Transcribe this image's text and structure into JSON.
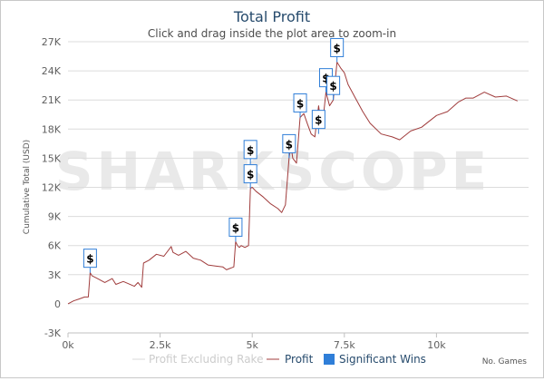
{
  "chart_data": {
    "type": "line",
    "title": "Total Profit",
    "subtitle": "Click and drag inside the plot area to zoom-in",
    "xlabel": "No. Games",
    "ylabel": "Cumulative Total (USD)",
    "watermark": "SHARKSCOPE",
    "xlim": [
      0,
      12500
    ],
    "ylim": [
      -3000,
      27000
    ],
    "x_ticks": [
      0,
      2500,
      5000,
      7500,
      10000
    ],
    "x_tick_labels": [
      "0k",
      "2.5k",
      "5k",
      "7.5k",
      "10k"
    ],
    "y_ticks": [
      -3000,
      0,
      3000,
      6000,
      9000,
      12000,
      15000,
      18000,
      21000,
      24000,
      27000
    ],
    "y_tick_labels": [
      "-3K",
      "0",
      "3K",
      "6K",
      "9K",
      "12K",
      "15K",
      "18K",
      "21K",
      "24K",
      "27K"
    ],
    "series": [
      {
        "name": "Profit Excluding Rake",
        "color": "#d9d9d9",
        "visible": false,
        "x": [],
        "y": []
      },
      {
        "name": "Profit",
        "color": "#a03c3c",
        "visible": true,
        "x": [
          0,
          150,
          300,
          450,
          550,
          600,
          650,
          800,
          1000,
          1200,
          1300,
          1500,
          1800,
          1900,
          2000,
          2050,
          2200,
          2400,
          2600,
          2800,
          2850,
          3000,
          3200,
          3400,
          3600,
          3800,
          4000,
          4200,
          4300,
          4500,
          4550,
          4600,
          4650,
          4700,
          4800,
          4900,
          4950,
          5000,
          5100,
          5300,
          5500,
          5700,
          5800,
          5900,
          6000,
          6050,
          6100,
          6200,
          6300,
          6400,
          6500,
          6600,
          6700,
          6800,
          6850,
          6900,
          7000,
          7100,
          7200,
          7300,
          7400,
          7500,
          7600,
          7800,
          8000,
          8200,
          8500,
          8800,
          9000,
          9300,
          9600,
          9800,
          10000,
          10300,
          10600,
          10800,
          11000,
          11300,
          11600,
          11900,
          12200
        ],
        "y": [
          0,
          300,
          500,
          700,
          700,
          3200,
          2900,
          2600,
          2200,
          2600,
          2000,
          2300,
          1800,
          2200,
          1700,
          4200,
          4500,
          5100,
          4900,
          5900,
          5300,
          5000,
          5400,
          4700,
          4500,
          4000,
          3900,
          3800,
          3500,
          3800,
          6400,
          6000,
          5800,
          6000,
          5800,
          6000,
          11900,
          12000,
          11600,
          11000,
          10300,
          9800,
          9400,
          10200,
          15000,
          16300,
          15000,
          14500,
          19200,
          19600,
          18500,
          17500,
          17200,
          20400,
          19000,
          18200,
          21800,
          20400,
          21000,
          24900,
          24300,
          23800,
          22600,
          21200,
          19800,
          18600,
          17500,
          17200,
          16900,
          17800,
          18200,
          18800,
          19400,
          19800,
          20800,
          21200,
          21200,
          21800,
          21300,
          21400,
          20900
        ]
      }
    ],
    "significant_wins": [
      {
        "x": 600,
        "y": 3200
      },
      {
        "x": 4550,
        "y": 6400
      },
      {
        "x": 4950,
        "y": 11900
      },
      {
        "x": 4950,
        "y": 14400
      },
      {
        "x": 6000,
        "y": 15000
      },
      {
        "x": 6300,
        "y": 19200
      },
      {
        "x": 6800,
        "y": 17500
      },
      {
        "x": 7000,
        "y": 21800
      },
      {
        "x": 7200,
        "y": 21000
      },
      {
        "x": 7300,
        "y": 24900
      }
    ],
    "significant_win_label": "$",
    "legend": {
      "position": "bottom-center",
      "items": [
        "Profit Excluding Rake",
        "Profit",
        "Significant Wins"
      ]
    }
  }
}
